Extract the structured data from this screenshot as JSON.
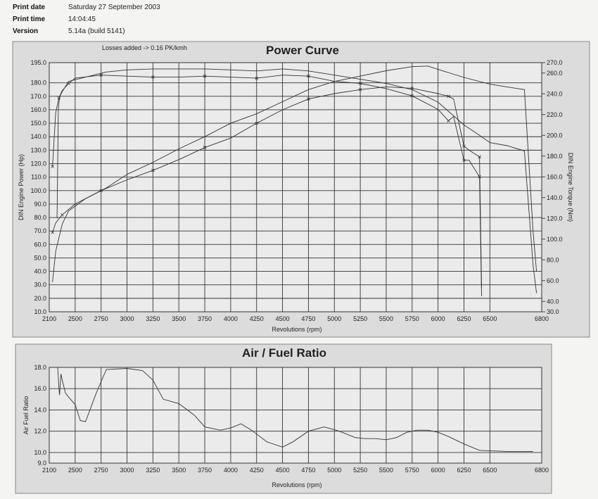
{
  "header": {
    "print_date_label": "Print date",
    "print_date": "Saturday 27 September 2003",
    "print_time_label": "Print time",
    "print_time": "14:04:45",
    "version_label": "Version",
    "version": "5.14a (build 5141)"
  },
  "chart_data": [
    {
      "type": "line",
      "title": "Power Curve",
      "note": "Losses added -> 0.16 PK/kmh",
      "xlabel": "Revolutions (rpm)",
      "ylabel": "DIN Engine Power (Hp)",
      "y2label": "DIN Engine Torque (Nm)",
      "xlim": [
        2100,
        6800
      ],
      "ylim": [
        10,
        195
      ],
      "y2lim": [
        30,
        270
      ],
      "grid": true,
      "x_ticks": [
        "2100",
        "2500",
        "2750",
        "3000",
        "3250",
        "3500",
        "3750",
        "4000",
        "4250",
        "4500",
        "4750",
        "5000",
        "5250",
        "5500",
        "5750",
        "6000",
        "6250",
        "6500",
        "6800"
      ],
      "y_ticks": [
        "195.0",
        "180.0",
        "170.0",
        "160.0",
        "150.0",
        "140.0",
        "130.0",
        "120.0",
        "110.0",
        "100.0",
        "90.0",
        "80.0",
        "70.0",
        "60.0",
        "50.0",
        "40.0",
        "30.0",
        "20.0",
        "10.0"
      ],
      "y2_ticks": [
        "270.0",
        "260.0",
        "240.0",
        "220.0",
        "200.0",
        "180.0",
        "160.0",
        "140.0",
        "120.0",
        "100.0",
        "80.0",
        "60.0",
        "40.0",
        "30.0"
      ],
      "series": [
        {
          "axis": "left",
          "values": [
            [
              2150,
              32
            ],
            [
              2200,
              55
            ],
            [
              2300,
              75
            ],
            [
              2400,
              85
            ],
            [
              2600,
              94
            ],
            [
              2800,
              102
            ],
            [
              3000,
              112
            ],
            [
              3250,
              121
            ],
            [
              3500,
              131
            ],
            [
              3750,
              140
            ],
            [
              4000,
              150
            ],
            [
              4250,
              157
            ],
            [
              4500,
              166
            ],
            [
              4750,
              175
            ],
            [
              5000,
              181
            ],
            [
              5250,
              185
            ],
            [
              5500,
              189
            ],
            [
              5750,
              192
            ],
            [
              5900,
              192.5
            ],
            [
              6000,
              190
            ],
            [
              6250,
              184
            ],
            [
              6500,
              179
            ],
            [
              6650,
              176
            ],
            [
              6700,
              175
            ],
            [
              6750,
              70
            ],
            [
              6770,
              40
            ]
          ]
        },
        {
          "axis": "left",
          "values": [
            [
              2150,
              69
            ],
            [
              2200,
              76
            ],
            [
              2300,
              82
            ],
            [
              2500,
              90
            ],
            [
              2750,
              100
            ],
            [
              3000,
              108
            ],
            [
              3250,
              115
            ],
            [
              3500,
              123
            ],
            [
              3750,
              132
            ],
            [
              4000,
              139
            ],
            [
              4250,
              150
            ],
            [
              4500,
              160
            ],
            [
              4750,
              168
            ],
            [
              5000,
              172
            ],
            [
              5250,
              175
            ],
            [
              5500,
              177
            ],
            [
              5750,
              176
            ],
            [
              6000,
              172
            ],
            [
              6100,
              170
            ],
            [
              6150,
              168
            ],
            [
              6250,
              133
            ],
            [
              6300,
              130
            ],
            [
              6400,
              125
            ],
            [
              6420,
              28
            ]
          ]
        },
        {
          "axis": "right",
          "values": [
            [
              2150,
              170
            ],
            [
              2200,
              222
            ],
            [
              2250,
              236
            ],
            [
              2300,
              243
            ],
            [
              2400,
              250
            ],
            [
              2500,
              255
            ],
            [
              2750,
              258
            ],
            [
              3000,
              257
            ],
            [
              3250,
              256
            ],
            [
              3500,
              256
            ],
            [
              3750,
              257
            ],
            [
              4000,
              256
            ],
            [
              4250,
              255
            ],
            [
              4500,
              258
            ],
            [
              4750,
              257
            ],
            [
              5000,
              252
            ],
            [
              5250,
              250
            ],
            [
              5500,
              245
            ],
            [
              5750,
              238
            ],
            [
              6000,
              225
            ],
            [
              6100,
              214
            ],
            [
              6150,
              218
            ],
            [
              6250,
              176
            ],
            [
              6300,
              176
            ],
            [
              6400,
              160
            ],
            [
              6420,
              45
            ]
          ]
        },
        {
          "axis": "right",
          "values": [
            [
              2220,
              120
            ],
            [
              2240,
              225
            ],
            [
              2260,
              237
            ],
            [
              2300,
              242
            ],
            [
              2400,
              252
            ],
            [
              2600,
              256
            ],
            [
              2800,
              261
            ],
            [
              3000,
              263
            ],
            [
              3250,
              264
            ],
            [
              3500,
              264
            ],
            [
              3750,
              264
            ],
            [
              4000,
              263
            ],
            [
              4250,
              262
            ],
            [
              4500,
              264
            ],
            [
              4750,
              262
            ],
            [
              5000,
              258
            ],
            [
              5250,
              254
            ],
            [
              5500,
              250
            ],
            [
              5750,
              244
            ],
            [
              6000,
              232
            ],
            [
              6250,
              210
            ],
            [
              6400,
              200
            ],
            [
              6500,
              193
            ],
            [
              6600,
              190
            ],
            [
              6700,
              185
            ],
            [
              6750,
              75
            ],
            [
              6770,
              48
            ]
          ]
        }
      ]
    },
    {
      "type": "line",
      "title": "Air / Fuel Ratio",
      "xlabel": "Revolutions (rpm)",
      "ylabel": "Air Fuel Ratio",
      "xlim": [
        2100,
        6800
      ],
      "ylim": [
        9.0,
        18.0
      ],
      "grid": true,
      "x_ticks": [
        "2100",
        "2500",
        "2750",
        "3000",
        "3250",
        "3500",
        "3750",
        "4000",
        "4250",
        "4500",
        "4750",
        "5000",
        "5250",
        "5500",
        "5750",
        "6000",
        "6250",
        "6500",
        "6800"
      ],
      "y_ticks": [
        "18.0",
        "16.0",
        "14.0",
        "12.0",
        "10.0",
        "9.0"
      ],
      "series": [
        {
          "values": [
            [
              2230,
              18.0
            ],
            [
              2250,
              16.0
            ],
            [
              2260,
              15.4
            ],
            [
              2280,
              17.4
            ],
            [
              2300,
              16.8
            ],
            [
              2350,
              15.6
            ],
            [
              2400,
              15.2
            ],
            [
              2500,
              14.5
            ],
            [
              2550,
              13.0
            ],
            [
              2600,
              12.9
            ],
            [
              2700,
              15.5
            ],
            [
              2800,
              17.8
            ],
            [
              3000,
              17.9
            ],
            [
              3150,
              17.7
            ],
            [
              3250,
              16.8
            ],
            [
              3350,
              15.0
            ],
            [
              3500,
              14.6
            ],
            [
              3650,
              13.5
            ],
            [
              3750,
              12.4
            ],
            [
              3900,
              12.1
            ],
            [
              4000,
              12.3
            ],
            [
              4100,
              12.7
            ],
            [
              4200,
              12.1
            ],
            [
              4350,
              11.0
            ],
            [
              4500,
              10.5
            ],
            [
              4600,
              11.0
            ],
            [
              4750,
              12.0
            ],
            [
              4900,
              12.4
            ],
            [
              5050,
              12.0
            ],
            [
              5200,
              11.4
            ],
            [
              5300,
              11.3
            ],
            [
              5400,
              11.3
            ],
            [
              5500,
              11.2
            ],
            [
              5600,
              11.4
            ],
            [
              5700,
              11.9
            ],
            [
              5800,
              12.1
            ],
            [
              5900,
              12.1
            ],
            [
              6000,
              11.9
            ],
            [
              6100,
              11.5
            ],
            [
              6250,
              10.8
            ],
            [
              6400,
              10.2
            ],
            [
              6600,
              10.1
            ],
            [
              6750,
              10.1
            ]
          ]
        }
      ]
    }
  ]
}
